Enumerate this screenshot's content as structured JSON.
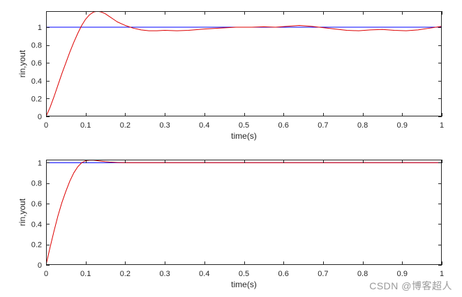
{
  "watermark": "CSDN @博客超人",
  "colors": {
    "reference": "#0000ff",
    "response": "#dd0000",
    "axis": "#262626"
  },
  "chart_data": [
    {
      "type": "line",
      "title": "",
      "xlabel": "time(s)",
      "ylabel": "rin,yout",
      "xlim": [
        0,
        1
      ],
      "ylim": [
        0,
        1.18
      ],
      "xticks": [
        "0",
        "0.1",
        "0.2",
        "0.3",
        "0.4",
        "0.5",
        "0.6",
        "0.7",
        "0.8",
        "0.9",
        "1"
      ],
      "yticks": [
        "0",
        "0.2",
        "0.4",
        "0.6",
        "0.8",
        "1"
      ],
      "grid": false,
      "legend": "none",
      "series": [
        {
          "color": "#0000ff",
          "x": [
            0,
            1
          ],
          "y": [
            1,
            1
          ]
        },
        {
          "color": "#dd0000",
          "x": [
            0,
            0.01,
            0.02,
            0.03,
            0.04,
            0.05,
            0.06,
            0.07,
            0.08,
            0.09,
            0.1,
            0.11,
            0.12,
            0.13,
            0.14,
            0.15,
            0.16,
            0.17,
            0.18,
            0.19,
            0.2,
            0.22,
            0.24,
            0.26,
            0.28,
            0.3,
            0.33,
            0.36,
            0.4,
            0.44,
            0.48,
            0.52,
            0.55,
            0.58,
            0.61,
            0.64,
            0.67,
            0.7,
            0.73,
            0.76,
            0.79,
            0.82,
            0.85,
            0.88,
            0.91,
            0.94,
            0.97,
            1.0
          ],
          "y": [
            0,
            0.1,
            0.22,
            0.35,
            0.48,
            0.6,
            0.72,
            0.83,
            0.93,
            1.02,
            1.09,
            1.14,
            1.17,
            1.18,
            1.17,
            1.15,
            1.12,
            1.09,
            1.06,
            1.04,
            1.02,
            0.99,
            0.97,
            0.96,
            0.96,
            0.965,
            0.96,
            0.965,
            0.98,
            0.99,
            1.0,
            1.0,
            1.005,
            1.0,
            1.01,
            1.02,
            1.01,
            0.995,
            0.98,
            0.965,
            0.96,
            0.97,
            0.975,
            0.965,
            0.96,
            0.97,
            0.99,
            1.01
          ]
        }
      ]
    },
    {
      "type": "line",
      "title": "",
      "xlabel": "time(s)",
      "ylabel": "rin,yout",
      "xlim": [
        0,
        1
      ],
      "ylim": [
        0,
        1.03
      ],
      "xticks": [
        "0",
        "0.1",
        "0.2",
        "0.3",
        "0.4",
        "0.5",
        "0.6",
        "0.7",
        "0.8",
        "0.9",
        "1"
      ],
      "yticks": [
        "0",
        "0.2",
        "0.4",
        "0.6",
        "0.8",
        "1"
      ],
      "grid": false,
      "legend": "none",
      "series": [
        {
          "color": "#0000ff",
          "x": [
            0,
            1
          ],
          "y": [
            1,
            1
          ]
        },
        {
          "color": "#dd0000",
          "x": [
            0,
            0.01,
            0.02,
            0.03,
            0.04,
            0.05,
            0.06,
            0.07,
            0.08,
            0.09,
            0.1,
            0.11,
            0.12,
            0.13,
            0.14,
            0.15,
            0.16,
            0.18,
            0.2,
            0.22,
            0.25,
            0.3,
            0.4,
            0.5,
            0.6,
            0.7,
            0.8,
            0.9,
            1.0
          ],
          "y": [
            0,
            0.17,
            0.33,
            0.48,
            0.61,
            0.72,
            0.82,
            0.9,
            0.96,
            1.0,
            1.02,
            1.025,
            1.025,
            1.02,
            1.015,
            1.01,
            1.007,
            1.003,
            1.0,
            1.0,
            1.0,
            1.0,
            1.0,
            1.0,
            1.0,
            1.0,
            1.0,
            1.0,
            1.0
          ]
        }
      ]
    }
  ]
}
